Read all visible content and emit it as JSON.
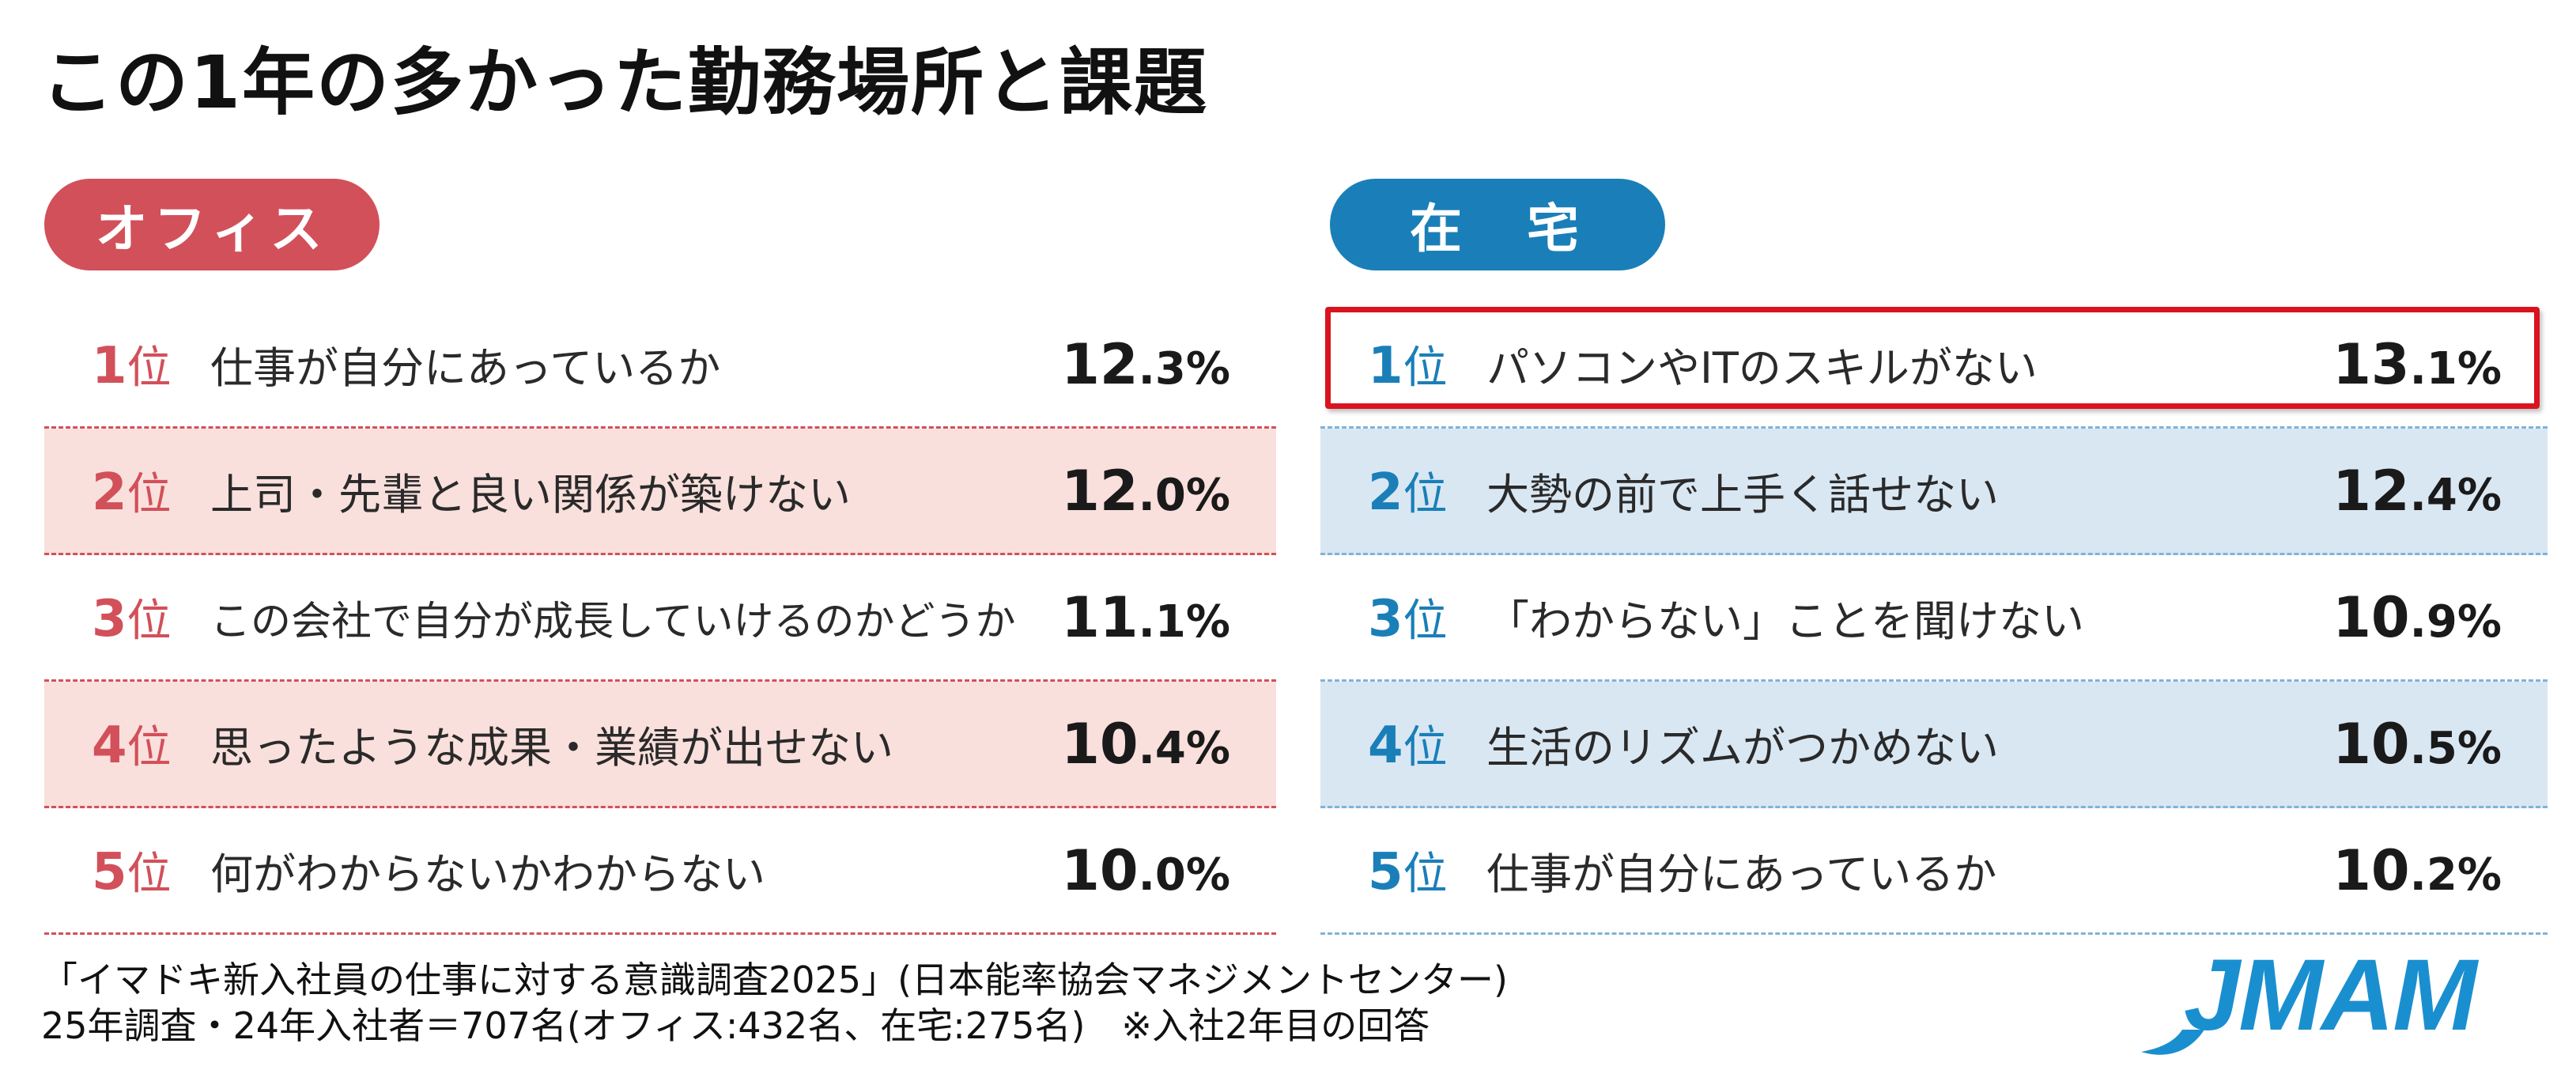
{
  "title": "この1年の多かった勤務場所と課題",
  "colors": {
    "office_accent": "#d2505a",
    "office_band": "#f9e0dc",
    "home_accent": "#1a7fb8",
    "home_band": "#d9e7f3",
    "highlight": "#d9141e",
    "logo": "#1a8fd0"
  },
  "office": {
    "label": "オフィス",
    "rows": [
      {
        "rank": "1",
        "suffix": "位",
        "text": "仕事が自分にあっているか",
        "int": "12",
        "dec": ".3%"
      },
      {
        "rank": "2",
        "suffix": "位",
        "text": "上司・先輩と良い関係が築けない",
        "int": "12",
        "dec": ".0%"
      },
      {
        "rank": "3",
        "suffix": "位",
        "text": "この会社で自分が成長していけるのかどうか",
        "int": "11",
        "dec": ".1%"
      },
      {
        "rank": "4",
        "suffix": "位",
        "text": "思ったような成果・業績が出せない",
        "int": "10",
        "dec": ".4%"
      },
      {
        "rank": "5",
        "suffix": "位",
        "text": "何がわからないかわからない",
        "int": "10",
        "dec": ".0%"
      }
    ]
  },
  "home": {
    "label": "在　宅",
    "rows": [
      {
        "rank": "1",
        "suffix": "位",
        "text": "パソコンやITのスキルがない",
        "int": "13",
        "dec": ".1%"
      },
      {
        "rank": "2",
        "suffix": "位",
        "text": "大勢の前で上手く話せない",
        "int": "12",
        "dec": ".4%"
      },
      {
        "rank": "3",
        "suffix": "位",
        "text": "「わからない」ことを聞けない",
        "int": "10",
        "dec": ".9%"
      },
      {
        "rank": "4",
        "suffix": "位",
        "text": "生活のリズムがつかめない",
        "int": "10",
        "dec": ".5%"
      },
      {
        "rank": "5",
        "suffix": "位",
        "text": "仕事が自分にあっているか",
        "int": "10",
        "dec": ".2%"
      }
    ]
  },
  "footer": {
    "line1": "「イマドキ新入社員の仕事に対する意識調査2025」(日本能率協会マネジメントセンター)",
    "line2": "25年調査・24年入社者＝707名(オフィス:432名、在宅:275名)　※入社2年目の回答"
  },
  "logo": {
    "text": "JMAM"
  }
}
